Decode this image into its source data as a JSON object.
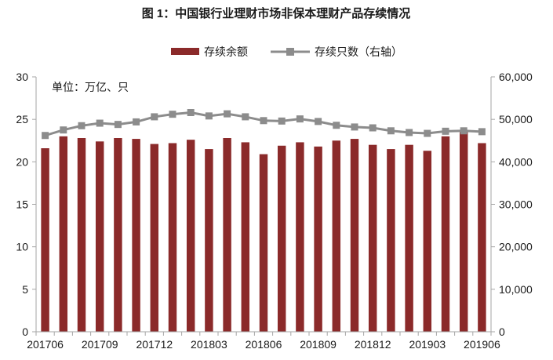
{
  "chart_data": {
    "type": "bar",
    "title": "图 1：中国银行业理财市场非保本理财产品存续情况",
    "unit_note": "单位：万亿、只",
    "legend_position": "top-center",
    "grid": false,
    "categories": [
      "201706",
      "201707",
      "201708",
      "201709",
      "201710",
      "201711",
      "201712",
      "201801",
      "201802",
      "201803",
      "201804",
      "201805",
      "201806",
      "201807",
      "201808",
      "201809",
      "201810",
      "201811",
      "201812",
      "201901",
      "201902",
      "201903",
      "201904",
      "201905",
      "201906"
    ],
    "x_tick_labels": [
      "201706",
      "201709",
      "201712",
      "201803",
      "201806",
      "201809",
      "201812",
      "201903",
      "201906"
    ],
    "y_left": {
      "min": 0,
      "max": 30,
      "ticks": [
        "0",
        "5",
        "10",
        "15",
        "20",
        "25",
        "30"
      ]
    },
    "y_right": {
      "min": 0,
      "max": 60000,
      "ticks": [
        "0",
        "10,000",
        "20,000",
        "30,000",
        "40,000",
        "50,000",
        "60,000"
      ]
    },
    "series": [
      {
        "name": "存续余额",
        "type": "bar",
        "axis": "left",
        "color": "#8b2a2a",
        "values": [
          21.6,
          23.0,
          22.8,
          22.4,
          22.8,
          22.7,
          22.1,
          22.2,
          22.6,
          21.5,
          22.8,
          22.3,
          20.9,
          21.9,
          22.3,
          21.8,
          22.5,
          22.7,
          22.0,
          21.5,
          22.0,
          21.3,
          23.0,
          23.5,
          22.2
        ]
      },
      {
        "name": "存续只数（右轴）",
        "type": "line",
        "axis": "right",
        "color": "#8c8c8c",
        "values": [
          46200,
          47500,
          48500,
          49100,
          48800,
          49400,
          50600,
          51200,
          51600,
          50800,
          51300,
          50600,
          49700,
          49600,
          50100,
          49500,
          48600,
          48200,
          48000,
          47300,
          46900,
          46700,
          47200,
          47300,
          47100
        ]
      }
    ]
  }
}
